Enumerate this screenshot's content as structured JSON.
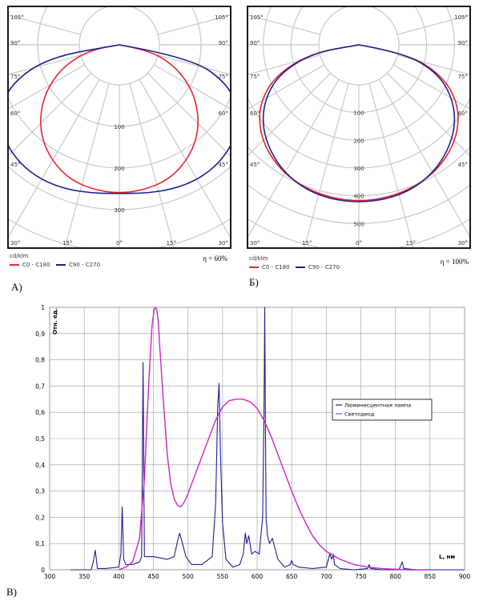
{
  "chart_data": [
    {
      "type": "polar",
      "panel_label": "А)",
      "unit_label": "cd/klm",
      "efficiency_label": "η = 60%",
      "radial_ticks": [
        "100",
        "200",
        "300"
      ],
      "angle_labels_left": [
        "105°",
        "90°",
        "75°",
        "60°",
        "45°",
        "30°",
        "15°"
      ],
      "angle_labels_right": [
        "105°",
        "90°",
        "75°",
        "60°",
        "45°",
        "30°",
        "15°"
      ],
      "bottom_label": "0°",
      "rmax": 400,
      "series": [
        {
          "name": "C0 - C180",
          "color": "#e8242a",
          "angles": [
            0,
            10,
            20,
            30,
            40,
            50,
            60,
            70,
            80,
            90
          ],
          "values": [
            288,
            285,
            278,
            260,
            235,
            200,
            158,
            110,
            55,
            0
          ]
        },
        {
          "name": "C90 - C270",
          "color": "#1b1f8f",
          "angles": [
            0,
            10,
            20,
            30,
            40,
            50,
            60,
            70,
            80,
            90
          ],
          "values": [
            288,
            292,
            298,
            302,
            300,
            290,
            268,
            225,
            140,
            0
          ]
        }
      ]
    },
    {
      "type": "polar",
      "panel_label": "Б)",
      "unit_label": "cd/klm",
      "efficiency_label": "η = 100%",
      "radial_ticks": [
        "100",
        "200",
        "300",
        "400",
        "500"
      ],
      "angle_labels_left": [
        "105°",
        "90°",
        "75°",
        "60°",
        "45°",
        "30°",
        "15°"
      ],
      "angle_labels_right": [
        "105°",
        "90°",
        "75°",
        "60°",
        "45°",
        "30°",
        "15°"
      ],
      "bottom_label": "0°",
      "rmax": 600,
      "series": [
        {
          "name": "C0 - C180",
          "color": "#e8242a",
          "angles": [
            0,
            10,
            20,
            30,
            40,
            50,
            60,
            70,
            80,
            90
          ],
          "values": [
            455,
            452,
            445,
            432,
            410,
            378,
            330,
            255,
            140,
            0
          ]
        },
        {
          "name": "C90 - C270",
          "color": "#1b1f8f",
          "angles": [
            0,
            10,
            20,
            30,
            40,
            50,
            60,
            70,
            80,
            90
          ],
          "values": [
            458,
            456,
            448,
            430,
            402,
            366,
            315,
            245,
            135,
            0
          ]
        }
      ]
    },
    {
      "type": "line",
      "panel_label": "В)",
      "ylabel": "Отн. ед.",
      "xlabel": "L, нм",
      "xlim": [
        300,
        900
      ],
      "ylim": [
        0,
        1
      ],
      "x_ticks": [
        300,
        350,
        400,
        450,
        500,
        550,
        600,
        650,
        700,
        750,
        800,
        850,
        900
      ],
      "y_ticks": [
        0,
        0.1,
        0.2,
        0.3,
        0.4,
        0.5,
        0.6,
        0.7,
        0.8,
        0.9,
        1
      ],
      "y_tick_labels": [
        "0",
        "0,1",
        "0,2",
        "0,3",
        "0,4",
        "0,5",
        "0,6",
        "0,7",
        "0,8",
        "0,9",
        "1"
      ],
      "grid": true,
      "legend_position": "right",
      "series": [
        {
          "name": "Люминесцентная лампа",
          "color": "#1b1f8f",
          "x": [
            330,
            360,
            363,
            366,
            369,
            380,
            400,
            403,
            405,
            407,
            410,
            420,
            430,
            433,
            435,
            437,
            440,
            445,
            450,
            460,
            470,
            480,
            485,
            488,
            492,
            497,
            505,
            520,
            535,
            540,
            543,
            545,
            547,
            550,
            555,
            565,
            575,
            580,
            583,
            585,
            588,
            592,
            597,
            603,
            608,
            610,
            611,
            612,
            613,
            615,
            618,
            622,
            625,
            630,
            640,
            648,
            650,
            652,
            660,
            680,
            700,
            705,
            708,
            710,
            712,
            720,
            740,
            760,
            762,
            764,
            780,
            805,
            810,
            812,
            830,
            880,
            900
          ],
          "values": [
            0,
            0,
            0.03,
            0.075,
            0.005,
            0.005,
            0.01,
            0.06,
            0.24,
            0.04,
            0.02,
            0.02,
            0.03,
            0.05,
            0.79,
            0.05,
            0.05,
            0.05,
            0.05,
            0.045,
            0.04,
            0.05,
            0.11,
            0.14,
            0.1,
            0.05,
            0.02,
            0.02,
            0.05,
            0.25,
            0.62,
            0.71,
            0.45,
            0.18,
            0.04,
            0.01,
            0.02,
            0.06,
            0.14,
            0.1,
            0.13,
            0.06,
            0.07,
            0.06,
            0.2,
            0.6,
            1.0,
            0.55,
            0.2,
            0.13,
            0.1,
            0.12,
            0.09,
            0.04,
            0.01,
            0.02,
            0.035,
            0.02,
            0.01,
            0.005,
            0.01,
            0.06,
            0.04,
            0.06,
            0.02,
            0.005,
            0,
            0.005,
            0.02,
            0.005,
            0,
            0,
            0.03,
            0.005,
            0,
            0,
            0
          ]
        },
        {
          "name": "Светодиод",
          "color": "#cc22cc",
          "x": [
            400,
            410,
            420,
            430,
            437,
            443,
            448,
            451,
            453,
            455,
            457,
            460,
            465,
            470,
            475,
            480,
            485,
            490,
            495,
            500,
            510,
            520,
            530,
            540,
            550,
            560,
            570,
            580,
            590,
            600,
            610,
            620,
            630,
            640,
            650,
            660,
            670,
            680,
            690,
            700,
            720,
            740,
            760,
            780,
            800,
            820,
            850
          ],
          "values": [
            0.0,
            0.01,
            0.03,
            0.12,
            0.35,
            0.7,
            0.93,
            0.99,
            1.0,
            0.99,
            0.95,
            0.82,
            0.62,
            0.44,
            0.33,
            0.27,
            0.245,
            0.24,
            0.26,
            0.29,
            0.36,
            0.43,
            0.5,
            0.57,
            0.62,
            0.645,
            0.65,
            0.65,
            0.64,
            0.615,
            0.57,
            0.51,
            0.44,
            0.37,
            0.3,
            0.235,
            0.18,
            0.13,
            0.095,
            0.07,
            0.04,
            0.02,
            0.01,
            0.005,
            0.002,
            0,
            0
          ]
        }
      ]
    }
  ]
}
